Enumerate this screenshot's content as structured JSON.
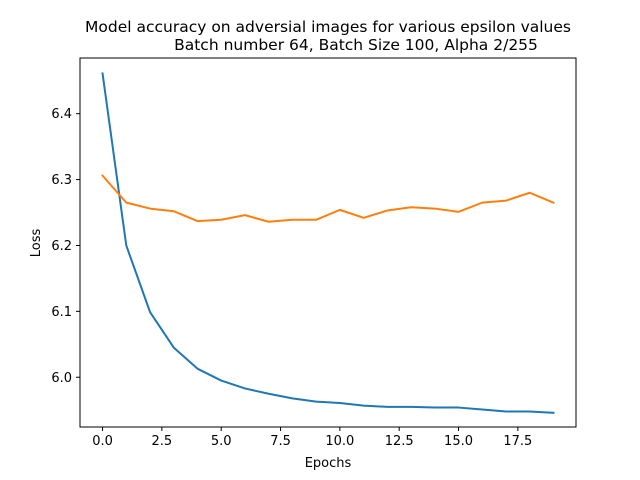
{
  "chart_data": {
    "type": "line",
    "title_line1": "Model accuracy on adversial images for various epsilon values",
    "title_line2": "Batch number 64, Batch Size 100, Alpha 2/255",
    "xlabel": "Epochs",
    "ylabel": "Loss",
    "xlim": [
      -0.95,
      19.95
    ],
    "ylim": [
      5.9245,
      6.4845
    ],
    "x_ticks": [
      0.0,
      2.5,
      5.0,
      7.5,
      10.0,
      12.5,
      15.0,
      17.5
    ],
    "x_tick_labels": [
      "0.0",
      "2.5",
      "5.0",
      "7.5",
      "10.0",
      "12.5",
      "15.0",
      "17.5"
    ],
    "y_ticks": [
      6.0,
      6.1,
      6.2,
      6.3,
      6.4
    ],
    "y_tick_labels": [
      "6.0",
      "6.1",
      "6.2",
      "6.3",
      "6.4"
    ],
    "grid": false,
    "x": [
      0,
      1,
      2,
      3,
      4,
      5,
      6,
      7,
      8,
      9,
      10,
      11,
      12,
      13,
      14,
      15,
      16,
      17,
      18,
      19
    ],
    "series": [
      {
        "color": "#1f77b4",
        "values": [
          6.461,
          6.2,
          6.099,
          6.045,
          6.013,
          5.995,
          5.983,
          5.975,
          5.968,
          5.963,
          5.961,
          5.957,
          5.955,
          5.955,
          5.954,
          5.954,
          5.951,
          5.948,
          5.948,
          5.946
        ]
      },
      {
        "color": "#ff7f0e",
        "values": [
          6.306,
          6.265,
          6.256,
          6.252,
          6.237,
          6.239,
          6.246,
          6.236,
          6.239,
          6.239,
          6.254,
          6.242,
          6.253,
          6.258,
          6.256,
          6.251,
          6.265,
          6.268,
          6.28,
          6.265
        ]
      }
    ]
  }
}
